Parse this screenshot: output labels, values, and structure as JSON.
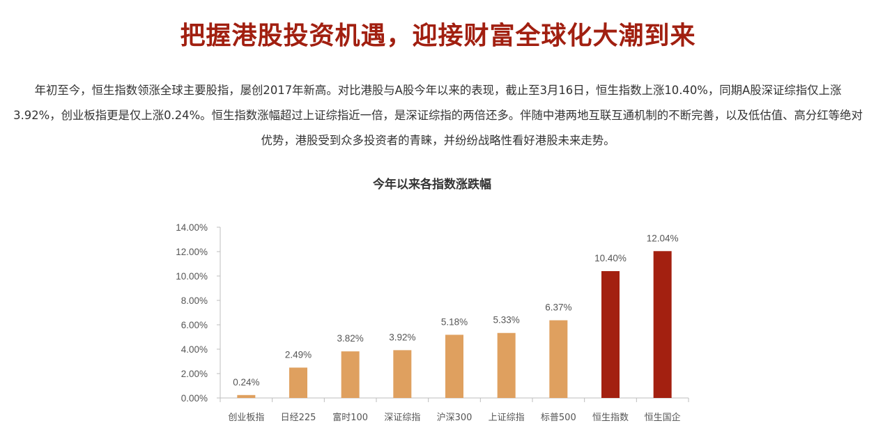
{
  "article": {
    "headline": "把握港股投资机遇，迎接财富全球化大潮到来",
    "intro": "年初至今，恒生指数领涨全球主要股指，屡创2017年新高。对比港股与A股今年以来的表现，截止至3月16日，恒生指数上涨10.40%，同期A股深证综指仅上涨3.92%，创业板指更是仅上涨0.24%。恒生指数涨幅超过上证综指近一倍，是深证综指的两倍还多。伴随中港两地互联互通机制的不断完善，以及低估值、高分红等绝对优势，港股受到众多投资者的青睐，并纷纷战略性看好港股未来走势。"
  },
  "chart_data": {
    "type": "bar",
    "title": "今年以来各指数涨跌幅",
    "xlabel": "",
    "ylabel": "",
    "categories": [
      "创业板指",
      "日经225",
      "富时100",
      "深证综指",
      "沪深300",
      "上证综指",
      "标普500",
      "恒生指数",
      "恒生国企"
    ],
    "values": [
      0.24,
      2.49,
      3.82,
      3.92,
      5.18,
      5.33,
      6.37,
      10.4,
      12.04
    ],
    "data_labels": [
      "0.24%",
      "2.49%",
      "3.82%",
      "3.92%",
      "5.18%",
      "5.33%",
      "6.37%",
      "10.40%",
      "12.04%"
    ],
    "bar_colors": [
      "#dfa05f",
      "#dfa05f",
      "#dfa05f",
      "#dfa05f",
      "#dfa05f",
      "#dfa05f",
      "#dfa05f",
      "#a32010",
      "#a32010"
    ],
    "ylim": [
      0,
      14
    ],
    "yticks": [
      0,
      2,
      4,
      6,
      8,
      10,
      12,
      14
    ],
    "ytick_labels": [
      "0.00%",
      "2.00%",
      "4.00%",
      "6.00%",
      "8.00%",
      "10.00%",
      "12.00%",
      "14.00%"
    ],
    "grid": false,
    "legend": "none"
  }
}
